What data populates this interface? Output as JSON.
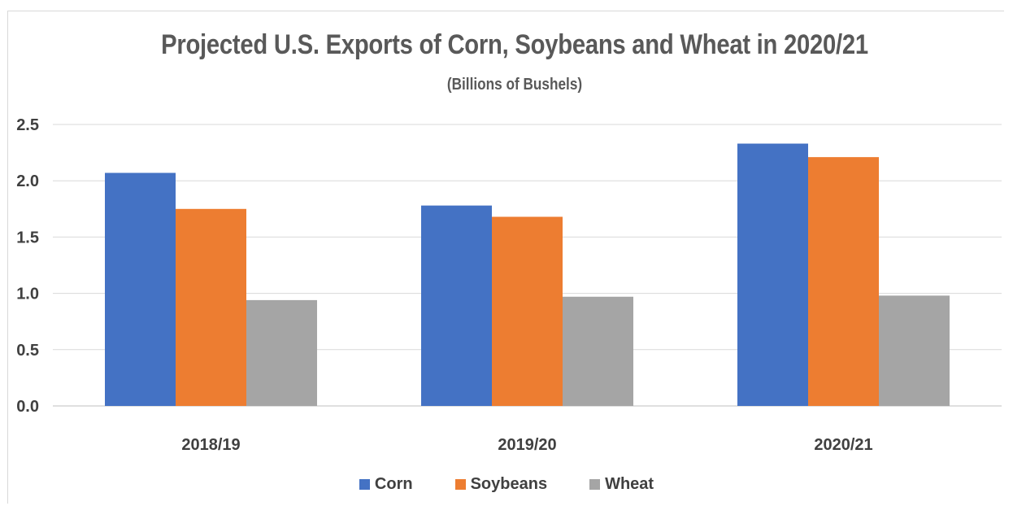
{
  "chart_data": {
    "type": "bar",
    "title": "Projected U.S. Exports of Corn, Soybeans and Wheat in 2020/21",
    "subtitle": "(Billions of Bushels)",
    "categories": [
      "2018/19",
      "2019/20",
      "2020/21"
    ],
    "series": [
      {
        "name": "Corn",
        "color": "#4472c4",
        "values": [
          2.07,
          1.78,
          2.33
        ]
      },
      {
        "name": "Soybeans",
        "color": "#ed7d31",
        "values": [
          1.75,
          1.68,
          2.21
        ]
      },
      {
        "name": "Wheat",
        "color": "#a5a5a5",
        "values": [
          0.94,
          0.97,
          0.98
        ]
      }
    ],
    "y_ticks": [
      "0.0",
      "0.5",
      "1.0",
      "1.5",
      "2.0",
      "2.5"
    ],
    "ylim": [
      0,
      2.5
    ],
    "grid": true,
    "legend_position": "bottom"
  }
}
